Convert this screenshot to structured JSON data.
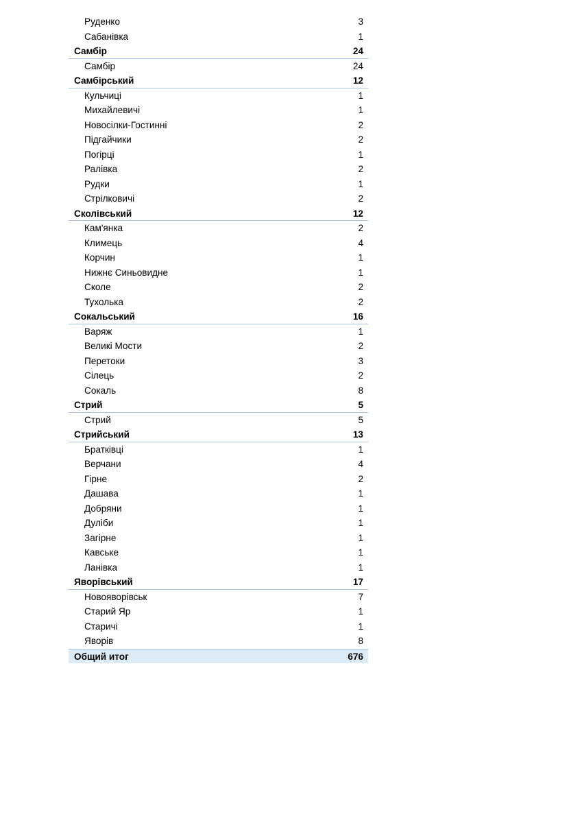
{
  "table": {
    "rows": [
      {
        "type": "item",
        "label": "Руденко",
        "value": "3"
      },
      {
        "type": "item",
        "label": "Сабанівка",
        "value": "1"
      },
      {
        "type": "group",
        "label": "Самбір",
        "value": "24"
      },
      {
        "type": "item",
        "label": "Самбір",
        "value": "24"
      },
      {
        "type": "group",
        "label": "Самбірський",
        "value": "12"
      },
      {
        "type": "item",
        "label": "Кульчиці",
        "value": "1"
      },
      {
        "type": "item",
        "label": "Михайлевичі",
        "value": "1"
      },
      {
        "type": "item",
        "label": "Новосілки-Гостинні",
        "value": "2"
      },
      {
        "type": "item",
        "label": "Підгайчики",
        "value": "2"
      },
      {
        "type": "item",
        "label": "Погірці",
        "value": "1"
      },
      {
        "type": "item",
        "label": "Ралівка",
        "value": "2"
      },
      {
        "type": "item",
        "label": "Рудки",
        "value": "1"
      },
      {
        "type": "item",
        "label": "Стрілковичі",
        "value": "2"
      },
      {
        "type": "group",
        "label": "Сколівський",
        "value": "12"
      },
      {
        "type": "item",
        "label": "Кам'янка",
        "value": "2"
      },
      {
        "type": "item",
        "label": "Климець",
        "value": "4"
      },
      {
        "type": "item",
        "label": "Корчин",
        "value": "1"
      },
      {
        "type": "item",
        "label": "Нижнє Синьовидне",
        "value": "1"
      },
      {
        "type": "item",
        "label": "Сколе",
        "value": "2"
      },
      {
        "type": "item",
        "label": "Тухолька",
        "value": "2"
      },
      {
        "type": "group",
        "label": "Сокальський",
        "value": "16"
      },
      {
        "type": "item",
        "label": "Варяж",
        "value": "1"
      },
      {
        "type": "item",
        "label": "Великі Мости",
        "value": "2"
      },
      {
        "type": "item",
        "label": "Перетоки",
        "value": "3"
      },
      {
        "type": "item",
        "label": "Сілець",
        "value": "2"
      },
      {
        "type": "item",
        "label": "Сокаль",
        "value": "8"
      },
      {
        "type": "group",
        "label": "Стрий",
        "value": "5"
      },
      {
        "type": "item",
        "label": "Стрий",
        "value": "5"
      },
      {
        "type": "group",
        "label": "Стрийський",
        "value": "13"
      },
      {
        "type": "item",
        "label": "Братківці",
        "value": "1"
      },
      {
        "type": "item",
        "label": "Верчани",
        "value": "4"
      },
      {
        "type": "item",
        "label": "Гірне",
        "value": "2"
      },
      {
        "type": "item",
        "label": "Дашава",
        "value": "1"
      },
      {
        "type": "item",
        "label": "Добряни",
        "value": "1"
      },
      {
        "type": "item",
        "label": "Дуліби",
        "value": "1"
      },
      {
        "type": "item",
        "label": "Загірне",
        "value": "1"
      },
      {
        "type": "item",
        "label": "Кавське",
        "value": "1"
      },
      {
        "type": "item",
        "label": "Ланівка",
        "value": "1"
      },
      {
        "type": "group",
        "label": "Яворівський",
        "value": "17"
      },
      {
        "type": "item",
        "label": "Новояворівськ",
        "value": "7"
      },
      {
        "type": "item",
        "label": "Старий Яр",
        "value": "1"
      },
      {
        "type": "item",
        "label": "Старичі",
        "value": "1"
      },
      {
        "type": "item",
        "label": "Яворів",
        "value": "8"
      },
      {
        "type": "total",
        "label": "Общий итог",
        "value": "676"
      }
    ]
  },
  "colors": {
    "total_bg": "#ddebf7",
    "border": "#a9c4e0"
  }
}
